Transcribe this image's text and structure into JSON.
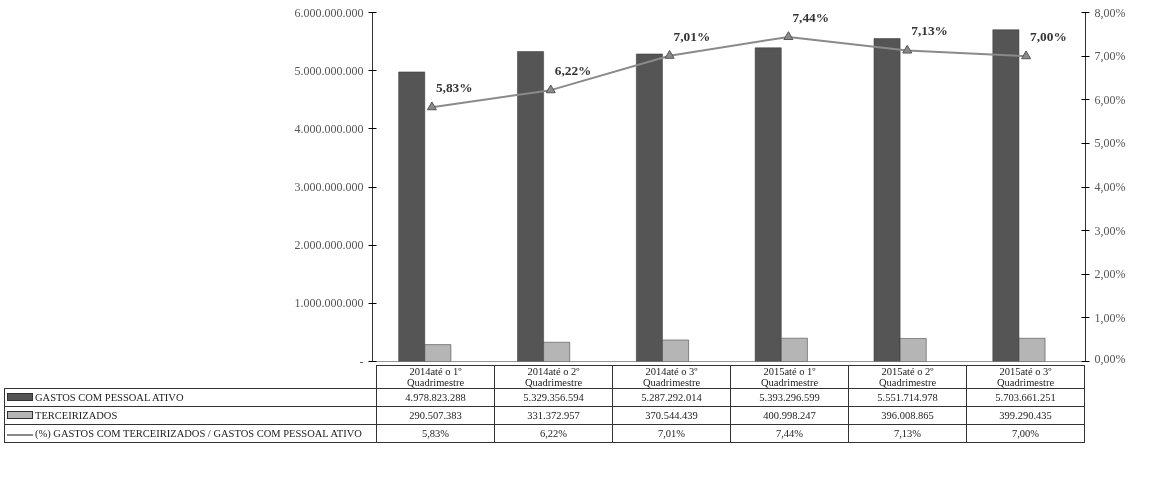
{
  "chart_data": {
    "type": "bar",
    "categories": [
      "2014até o 1º Quadrimestre",
      "2014até o 2º Quadrimestre",
      "2014até o 3º Quadrimestre",
      "2015até o 1º Quadrimestre",
      "2015até o 2º Quadrimestre",
      "2015até o 3º Quadrimestre"
    ],
    "series": [
      {
        "name": "GASTOS COM PESSOAL ATIVO",
        "color": "#555555",
        "values": [
          4978823288,
          5329356594,
          5287292014,
          5393296599,
          5551714978,
          5703661251
        ],
        "value_labels": [
          "4.978.823.288",
          "5.329.356.594",
          "5.287.292.014",
          "5.393.296.599",
          "5.551.714.978",
          "5.703.661.251"
        ]
      },
      {
        "name": "TERCEIRIZADOS",
        "color": "#b5b5b5",
        "values": [
          290507383,
          331372957,
          370544439,
          400998247,
          396008865,
          399290435
        ],
        "value_labels": [
          "290.507.383",
          "331.372.957",
          "370.544.439",
          "400.998.247",
          "396.008.865",
          "399.290.435"
        ]
      },
      {
        "name": "(%) GASTOS COM TERCEIRIZADOS / GASTOS COM PESSOAL ATIVO",
        "type": "line",
        "axis": "y2",
        "marker": "triangle",
        "color": "#8a8a8a",
        "values": [
          5.83,
          6.22,
          7.01,
          7.44,
          7.13,
          7.0
        ],
        "value_labels": [
          "5,83%",
          "6,22%",
          "7,01%",
          "7,44%",
          "7,13%",
          "7,00%"
        ]
      }
    ],
    "ylim": [
      0,
      6000000000
    ],
    "yticks": [
      {
        "value": 0,
        "label": "-"
      },
      {
        "value": 1000000000,
        "label": "1.000.000.000"
      },
      {
        "value": 2000000000,
        "label": "2.000.000.000"
      },
      {
        "value": 3000000000,
        "label": "3.000.000.000"
      },
      {
        "value": 4000000000,
        "label": "4.000.000.000"
      },
      {
        "value": 5000000000,
        "label": "5.000.000.000"
      },
      {
        "value": 6000000000,
        "label": "6.000.000.000"
      }
    ],
    "y2lim": [
      0,
      8
    ],
    "y2ticks": [
      {
        "value": 0,
        "label": "0,00%"
      },
      {
        "value": 1,
        "label": "1,00%"
      },
      {
        "value": 2,
        "label": "2,00%"
      },
      {
        "value": 3,
        "label": "3,00%"
      },
      {
        "value": 4,
        "label": "4,00%"
      },
      {
        "value": 5,
        "label": "5,00%"
      },
      {
        "value": 6,
        "label": "6,00%"
      },
      {
        "value": 7,
        "label": "7,00%"
      },
      {
        "value": 8,
        "label": "8,00%"
      }
    ],
    "legend": "bottom"
  }
}
